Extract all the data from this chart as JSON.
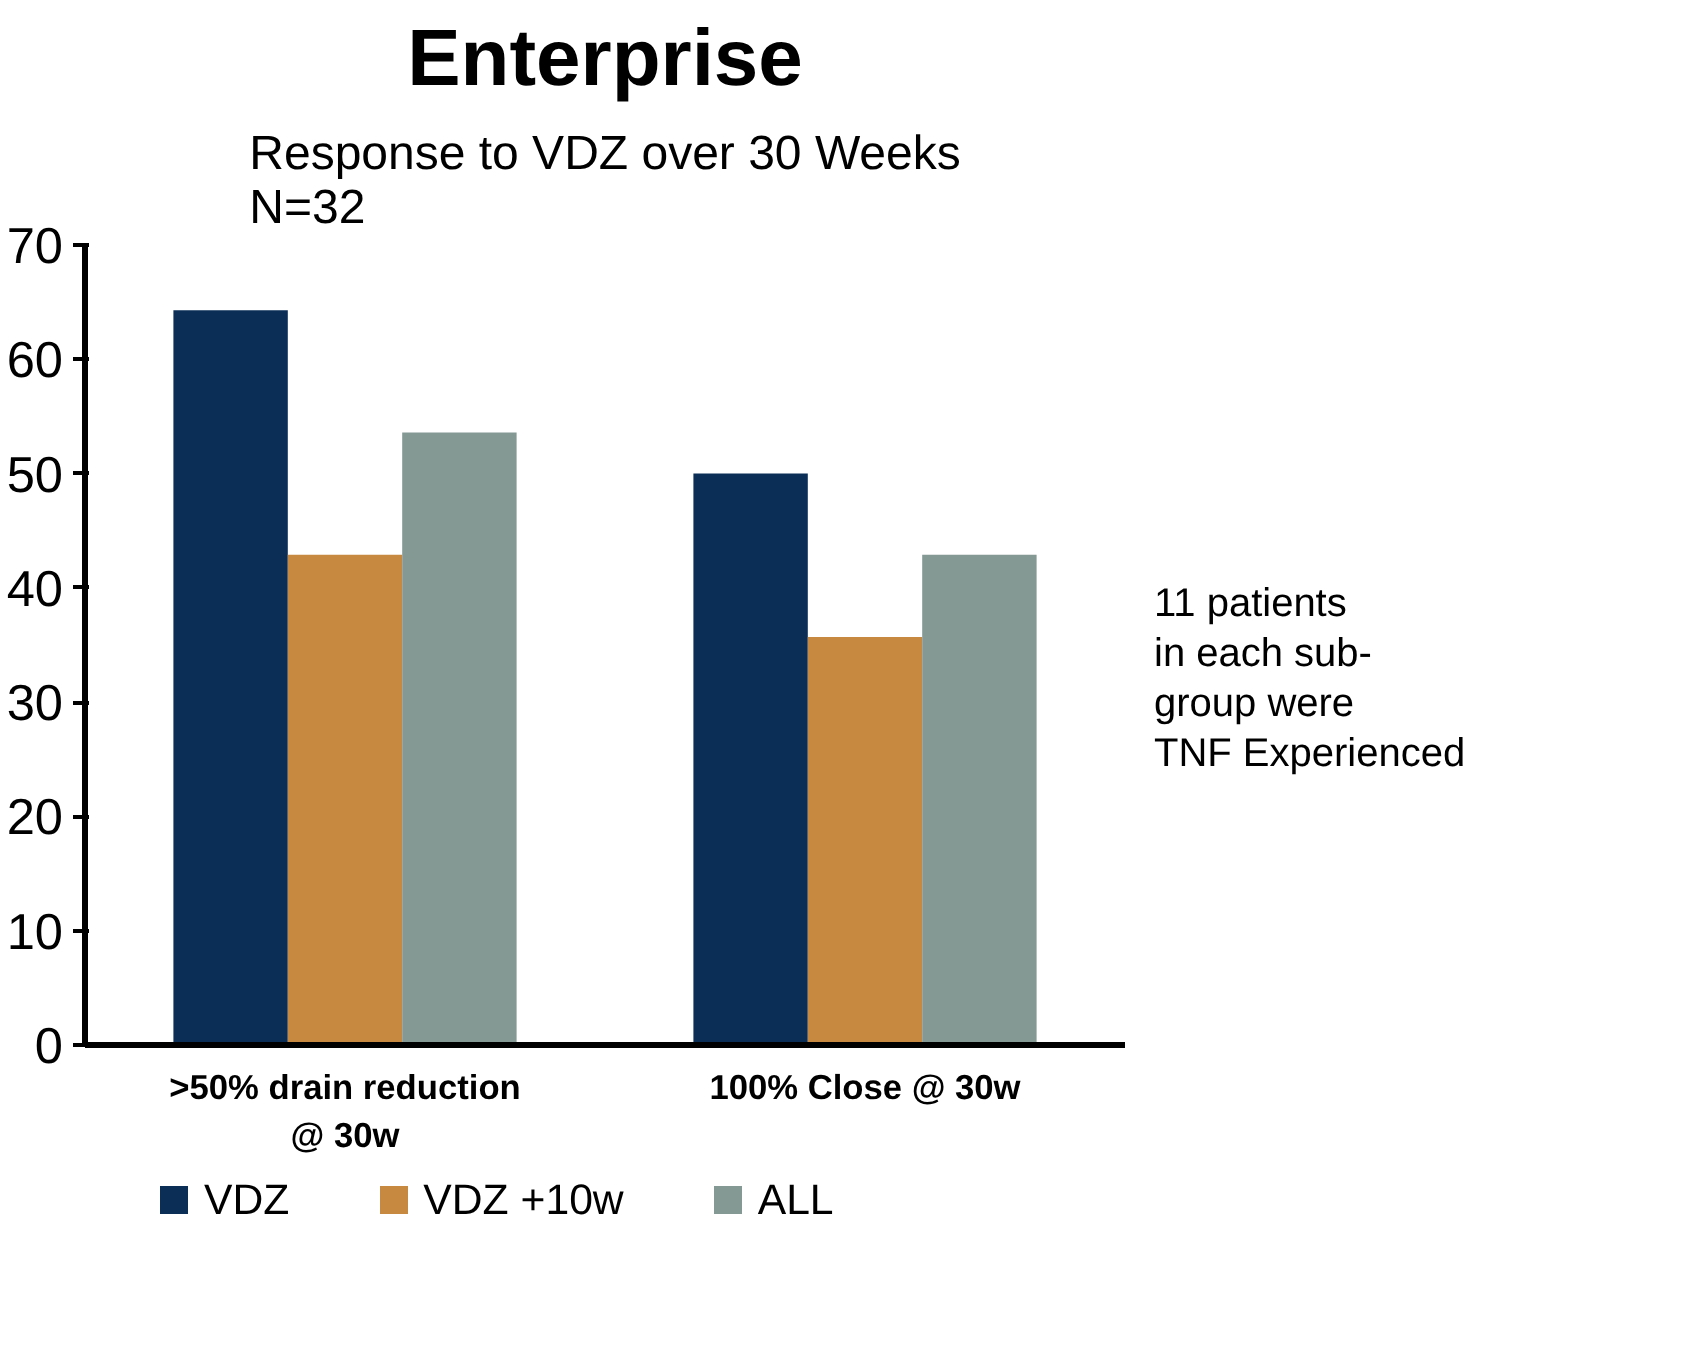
{
  "chart_data": {
    "type": "bar",
    "title": "Enterprise",
    "subtitle": "Response to VDZ over 30 Weeks\nN=32",
    "categories": [
      ">50% drain reduction @ 30w",
      "100% Close @ 30w"
    ],
    "series": [
      {
        "name": "VDZ",
        "color": "#0b2e57",
        "values": [
          64.3,
          50.0
        ]
      },
      {
        "name": "VDZ +10w",
        "color": "#c78840",
        "values": [
          42.9,
          35.7
        ]
      },
      {
        "name": "ALL",
        "color": "#849894",
        "values": [
          53.6,
          42.9
        ]
      }
    ],
    "ylim": [
      0,
      70
    ],
    "yticks": [
      0,
      10,
      20,
      30,
      40,
      50,
      60,
      70
    ],
    "grid": false,
    "legend": "bottom",
    "annotations": [
      "11 patients\nin each sub-\ngroup were\nTNF Experienced"
    ]
  }
}
